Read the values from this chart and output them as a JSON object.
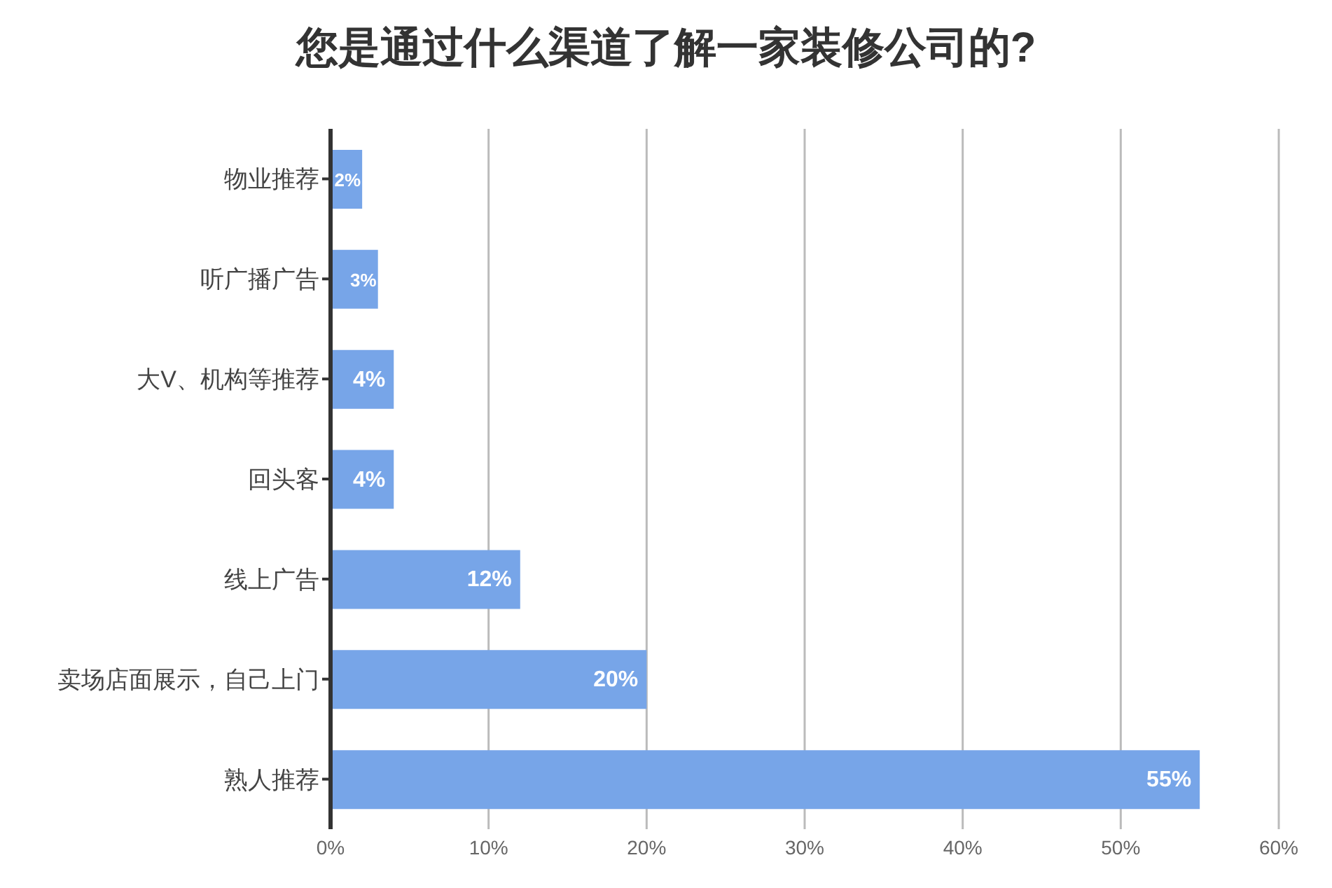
{
  "chart_data": {
    "type": "bar",
    "orientation": "horizontal",
    "title": "您是通过什么渠道了解一家装修公司的?",
    "categories": [
      "物业推荐",
      "听广播广告",
      "大V、机构等推荐",
      "回头客",
      "线上广告",
      "卖场店面展示，自己上门",
      "熟人推荐"
    ],
    "values": [
      2,
      3,
      4,
      4,
      12,
      20,
      55
    ],
    "color": "#77a5e8",
    "value_labels": [
      "2%",
      "3%",
      "4%",
      "4%",
      "12%",
      "20%",
      "55%"
    ],
    "xlim": [
      0,
      60
    ],
    "xticks": [
      {
        "value": 0,
        "label": "0%"
      },
      {
        "value": 10,
        "label": "10%"
      },
      {
        "value": 20,
        "label": "20%"
      },
      {
        "value": 30,
        "label": "30%"
      },
      {
        "value": 40,
        "label": "40%"
      },
      {
        "value": 50,
        "label": "50%"
      },
      {
        "value": 60,
        "label": "60%"
      }
    ],
    "grid": "x"
  }
}
